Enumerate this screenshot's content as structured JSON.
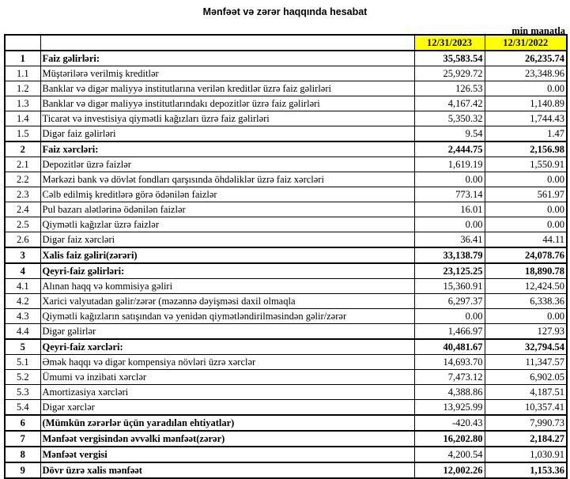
{
  "title": "Mənfəət və zərər haqqında hesabat",
  "unit": "min manatla",
  "columns": [
    "12/31/2023",
    "12/31/2022"
  ],
  "header_color": "#ffff00",
  "rows": [
    {
      "num": "1",
      "label": "Faiz gəlirləri:",
      "v2023": "35,583.54",
      "v2022": "26,235.74",
      "label_bold": true,
      "value_bold": true
    },
    {
      "num": "1.1",
      "label": "Müştərilərə verilmiş kreditlər",
      "v2023": "25,929.72",
      "v2022": "23,348.96"
    },
    {
      "num": "1.2",
      "label": "Banklar və digər maliyyə institutlarına verilən kreditlər üzrə faiz gəlirləri",
      "v2023": "126.53",
      "v2022": "0.00"
    },
    {
      "num": "1.3",
      "label": "Banklar və digər maliyyə institutlarındakı depozitlər üzrə faiz gəlirləri",
      "v2023": "4,167.42",
      "v2022": "1,140.89"
    },
    {
      "num": "1.4",
      "label": "Ticarət və investisiya qiymətli kağızları üzrə faiz gəlirləri",
      "v2023": "5,350.32",
      "v2022": "1,744.43"
    },
    {
      "num": "1.5",
      "label": "Digər faiz gəlirləri",
      "v2023": "9.54",
      "v2022": "1.47"
    },
    {
      "num": "2",
      "label": "Faiz xərcləri:",
      "v2023": "2,444.75",
      "v2022": "2,156.98",
      "label_bold": true,
      "value_bold": true
    },
    {
      "num": "2.1",
      "label": "Depozitlər üzrə faizlər",
      "v2023": "1,619.19",
      "v2022": "1,550.91"
    },
    {
      "num": "2.2",
      "label": "Mərkəzi bank və dövlət fondları qarşısında öhdəliklər üzrə faiz xərcləri",
      "v2023": "0.00",
      "v2022": "0.00"
    },
    {
      "num": "2.3",
      "label": "Cəlb edilmiş kreditlərə görə ödənilən faizlər",
      "v2023": "773.14",
      "v2022": "561.97"
    },
    {
      "num": "2.4",
      "label": "Pul bazarı alətlərinə ödənilən faizlər",
      "v2023": "16.01",
      "v2022": "0.00"
    },
    {
      "num": "2.5",
      "label": "Qiymətli kağızlar üzrə faizlər",
      "v2023": "0.00",
      "v2022": "0.00"
    },
    {
      "num": "2.6",
      "label": "Digər faiz xərcləri",
      "v2023": "36.41",
      "v2022": "44.11"
    },
    {
      "num": "3",
      "label": "Xalis faiz gəliri(zərəri)",
      "v2023": "33,138.79",
      "v2022": "24,078.76",
      "label_bold": true,
      "value_bold": true
    },
    {
      "num": "4",
      "label": "Qeyri-faiz gəlirləri:",
      "v2023": "23,125.25",
      "v2022": "18,890.78",
      "label_bold": true,
      "value_bold": true
    },
    {
      "num": "4.1",
      "label": "Alınan haqq və kommisiya gəliri",
      "v2023": "15,360.91",
      "v2022": "12,424.50"
    },
    {
      "num": "4.2",
      "label": "Xarici valyutadan gəlir/zərər (məzənnə dəyişməsi daxil olmaqla",
      "v2023": "6,297.37",
      "v2022": "6,338.36"
    },
    {
      "num": "4.3",
      "label": "Qiymətli kağızların satışından və yenidən qiymətləndirilməsindən gəlir/zərər",
      "v2023": "0.00",
      "v2022": "0.00"
    },
    {
      "num": "4.4",
      "label": "Digər gəlirlər",
      "v2023": "1,466.97",
      "v2022": "127.93"
    },
    {
      "num": "5",
      "label": "Qeyri-faiz xərcləri:",
      "v2023": "40,481.67",
      "v2022": "32,794.54",
      "label_bold": true,
      "value_bold": true
    },
    {
      "num": "5.1",
      "label": "Əmək haqqı və digər kompensiya növləri üzrə xərclər",
      "v2023": "14,693.70",
      "v2022": "11,347.57"
    },
    {
      "num": "5.2",
      "label": "Ümumi və inzibati xərclər",
      "v2023": "7,473.12",
      "v2022": "6,902.05"
    },
    {
      "num": "5.3",
      "label": "Amortizasiya xərcləri",
      "v2023": "4,388.86",
      "v2022": "4,187.51"
    },
    {
      "num": "5.4",
      "label": "Digər xərclər",
      "v2023": "13,925.99",
      "v2022": "10,357.41"
    },
    {
      "num": "6",
      "label": "(Mümkün zərərlər üçün yaradılan ehtiyatlar)",
      "v2023": "-420.43",
      "v2022": "7,990.73",
      "label_bold": true,
      "value_bold": false
    },
    {
      "num": "7",
      "label": "Mənfəət vergisindən əvvəlki mənfəət(zərər)",
      "v2023": "16,202.80",
      "v2022": "2,184.27",
      "label_bold": true,
      "value_bold": true
    },
    {
      "num": "8",
      "label": "Mənfəət vergisi",
      "v2023": "4,200.54",
      "v2022": "1,030.91",
      "label_bold": true,
      "value_bold": false
    },
    {
      "num": "9",
      "label": "Dövr üzrə xalis mənfəət",
      "v2023": "12,002.26",
      "v2022": "1,153.36",
      "label_bold": true,
      "value_bold": true
    }
  ]
}
